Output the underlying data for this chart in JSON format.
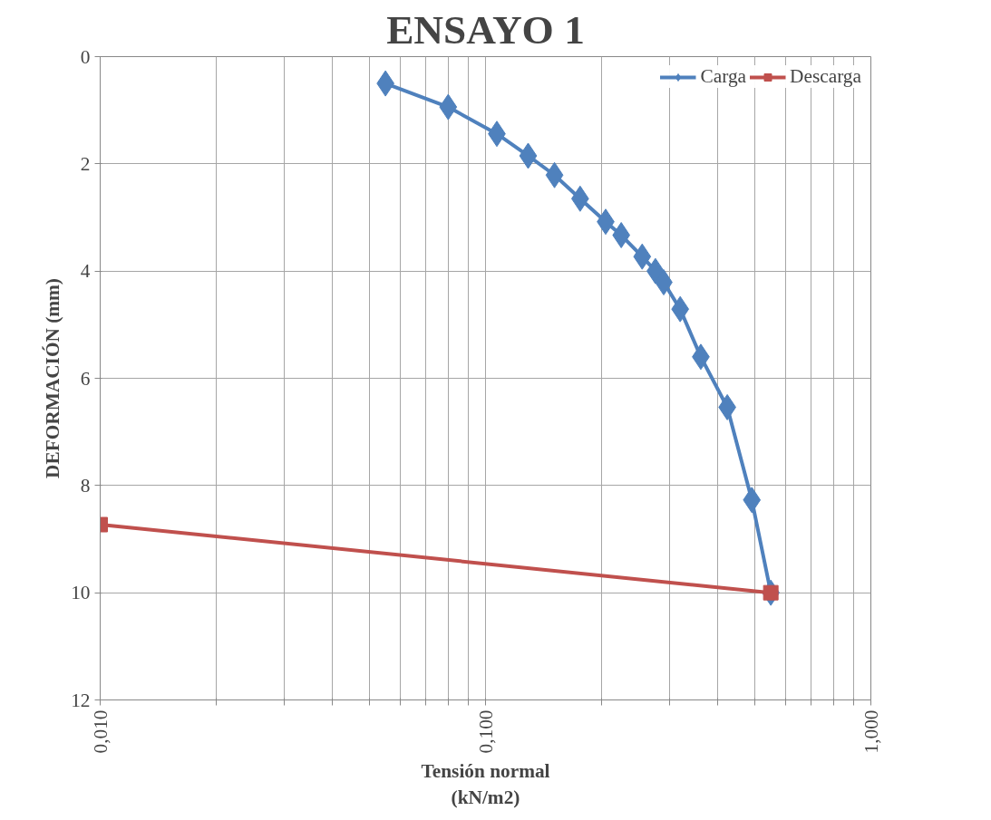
{
  "chart_data": {
    "type": "line",
    "title": "ENSAYO 1",
    "xlabel": "Tensión normal\n(kN/m2)",
    "ylabel": "DEFORMACIÓN (mm)",
    "log": "x",
    "grid": true,
    "legend": "top right",
    "xlim": [
      0.01,
      1
    ],
    "ylim": [
      12,
      0
    ],
    "xticks": [
      {
        "value": 0.01,
        "label": "0,010"
      },
      {
        "value": 0.02,
        "label": null
      },
      {
        "value": 0.03,
        "label": null
      },
      {
        "value": 0.04,
        "label": null
      },
      {
        "value": 0.05,
        "label": null
      },
      {
        "value": 0.06,
        "label": null
      },
      {
        "value": 0.07,
        "label": null
      },
      {
        "value": 0.08,
        "label": null
      },
      {
        "value": 0.09,
        "label": null
      },
      {
        "value": 0.1,
        "label": "0,100"
      },
      {
        "value": 0.2,
        "label": null
      },
      {
        "value": 0.3,
        "label": null
      },
      {
        "value": 0.4,
        "label": null
      },
      {
        "value": 0.5,
        "label": null
      },
      {
        "value": 0.6,
        "label": null
      },
      {
        "value": 0.7,
        "label": null
      },
      {
        "value": 0.8,
        "label": null
      },
      {
        "value": 0.9,
        "label": null
      },
      {
        "value": 1,
        "label": "1,000"
      }
    ],
    "yticks": [
      0,
      2,
      4,
      6,
      8,
      10,
      12
    ],
    "series": [
      {
        "name": "Carga",
        "color": "#4f81bd",
        "marker": "diamond",
        "x": [
          0.055,
          0.08,
          0.107,
          0.129,
          0.151,
          0.176,
          0.205,
          0.225,
          0.255,
          0.276,
          0.29,
          0.32,
          0.362,
          0.424,
          0.491,
          0.55
        ],
        "values": [
          0.5,
          0.94,
          1.44,
          1.85,
          2.21,
          2.65,
          3.08,
          3.33,
          3.73,
          4.0,
          4.21,
          4.71,
          5.6,
          6.54,
          8.27,
          10.0
        ]
      },
      {
        "name": "Descarga",
        "color": "#c0504d",
        "marker": "square",
        "x": [
          0.01,
          0.55
        ],
        "values": [
          8.73,
          10.0
        ]
      }
    ]
  }
}
